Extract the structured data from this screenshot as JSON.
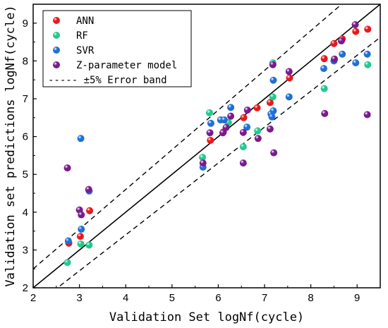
{
  "chart_data": {
    "type": "scatter",
    "title": "",
    "xlabel": "Validation Set logNf(cycle)",
    "ylabel": "Validation set predictions logNf(cycle)",
    "xlim": [
      2,
      9.5
    ],
    "ylim": [
      2,
      9.5
    ],
    "xticks": [
      "2",
      "3",
      "4",
      "5",
      "6",
      "7",
      "8",
      "9"
    ],
    "yticks": [
      "2",
      "3",
      "4",
      "5",
      "6",
      "7",
      "8",
      "9"
    ],
    "grid": false,
    "legend_position": "top-left",
    "series": [
      {
        "name": "ANN",
        "color": "#e8181c",
        "points": [
          [
            2.77,
            3.18
          ],
          [
            3.02,
            3.36
          ],
          [
            3.22,
            4.04
          ],
          [
            5.83,
            5.9
          ],
          [
            6.11,
            6.12
          ],
          [
            6.55,
            6.5
          ],
          [
            6.84,
            6.76
          ],
          [
            7.12,
            6.9
          ],
          [
            7.54,
            7.55
          ],
          [
            8.29,
            8.06
          ],
          [
            8.5,
            8.46
          ],
          [
            8.68,
            8.58
          ],
          [
            8.97,
            8.78
          ],
          [
            9.23,
            8.84
          ]
        ]
      },
      {
        "name": "RF",
        "color": "#22c98d",
        "points": [
          [
            2.74,
            2.67
          ],
          [
            3.03,
            3.16
          ],
          [
            3.21,
            3.13
          ],
          [
            5.66,
            5.45
          ],
          [
            5.81,
            6.63
          ],
          [
            6.22,
            6.37
          ],
          [
            6.54,
            5.73
          ],
          [
            6.85,
            6.15
          ],
          [
            7.18,
            7.05
          ],
          [
            7.18,
            7.95
          ],
          [
            8.29,
            7.27
          ],
          [
            9.23,
            7.9
          ]
        ]
      },
      {
        "name": "SVR",
        "color": "#1f6fd6",
        "points": [
          [
            2.76,
            3.24
          ],
          [
            3.03,
            5.95
          ],
          [
            3.04,
            3.55
          ],
          [
            3.21,
            4.56
          ],
          [
            5.67,
            5.19
          ],
          [
            5.84,
            6.35
          ],
          [
            6.05,
            6.44
          ],
          [
            6.13,
            6.44
          ],
          [
            6.27,
            6.77
          ],
          [
            6.62,
            6.25
          ],
          [
            7.14,
            6.6
          ],
          [
            7.16,
            6.52
          ],
          [
            7.19,
            6.68
          ],
          [
            7.19,
            7.49
          ],
          [
            7.53,
            7.05
          ],
          [
            8.28,
            7.8
          ],
          [
            8.5,
            8.0
          ],
          [
            8.68,
            8.18
          ],
          [
            8.97,
            7.95
          ],
          [
            9.22,
            8.18
          ]
        ]
      },
      {
        "name": "Z-parameter model",
        "color": "#7a1a8e",
        "points": [
          [
            2.74,
            5.17
          ],
          [
            3.0,
            4.06
          ],
          [
            3.04,
            3.93
          ],
          [
            3.2,
            4.6
          ],
          [
            5.67,
            5.3
          ],
          [
            5.82,
            6.1
          ],
          [
            6.1,
            6.1
          ],
          [
            6.17,
            6.24
          ],
          [
            6.27,
            6.54
          ],
          [
            6.54,
            5.3
          ],
          [
            6.54,
            6.11
          ],
          [
            6.63,
            6.7
          ],
          [
            6.86,
            5.95
          ],
          [
            7.12,
            6.2
          ],
          [
            7.2,
            5.57
          ],
          [
            7.18,
            7.9
          ],
          [
            7.53,
            7.72
          ],
          [
            8.3,
            6.61
          ],
          [
            8.51,
            8.05
          ],
          [
            8.66,
            8.53
          ],
          [
            8.96,
            8.96
          ],
          [
            9.22,
            6.58
          ]
        ]
      }
    ],
    "reference_lines": [
      {
        "kind": "y=x",
        "style": "solid"
      },
      {
        "kind": "±5% error band",
        "style": "dashed"
      }
    ],
    "legend_entries": [
      "ANN",
      "RF",
      "SVR",
      "Z-parameter model",
      "±5% Error band"
    ],
    "legend_band_prefix": "-----"
  }
}
